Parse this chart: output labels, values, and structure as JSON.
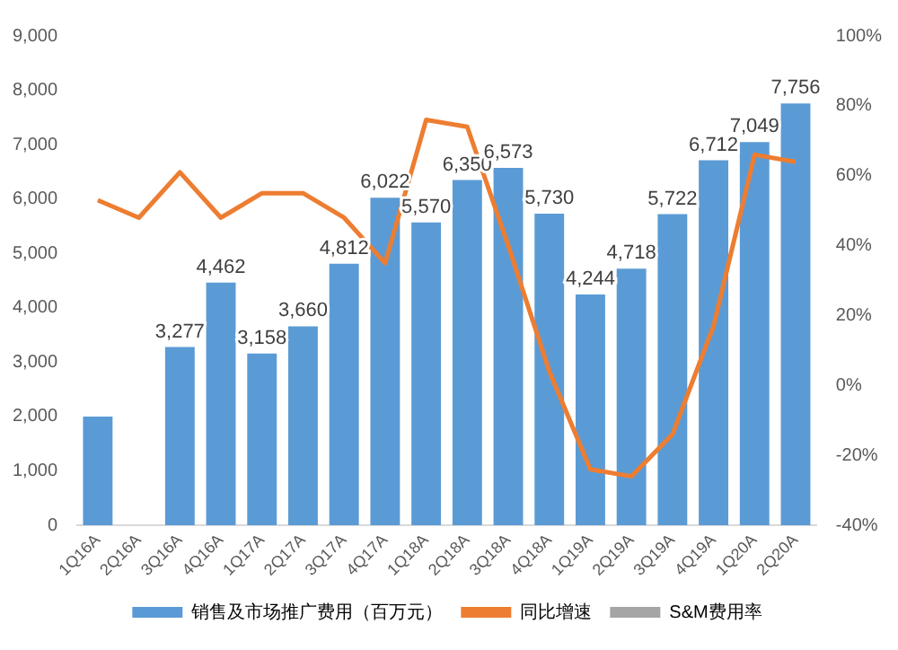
{
  "chart_data": {
    "type": "bar",
    "categories": [
      "1Q16A",
      "2Q16A",
      "3Q16A",
      "4Q16A",
      "1Q17A",
      "2Q17A",
      "3Q17A",
      "4Q17A",
      "1Q18A",
      "2Q18A",
      "3Q18A",
      "4Q18A",
      "1Q19A",
      "2Q19A",
      "3Q19A",
      "4Q19A",
      "1Q20A",
      "2Q20A"
    ],
    "series": [
      {
        "name": "销售及市场推广费用（百万元）",
        "color": "#5b9bd5",
        "values": [
          2000,
          null,
          3277,
          4462,
          3158,
          3660,
          4812,
          6022,
          5570,
          6350,
          6573,
          5730,
          4244,
          4718,
          5722,
          6712,
          7049,
          7756
        ],
        "value_labels": [
          null,
          null,
          "3,277",
          "4,462",
          "3,158",
          "3,660",
          "4,812",
          "6,022",
          "5,570",
          "6,350",
          "6,573",
          "5,730",
          "4,244",
          "4,718",
          "5,722",
          "6,712",
          "7,049",
          "7,756"
        ]
      },
      {
        "name": "同比增速",
        "type": "line",
        "axis": "y2",
        "color": "#ed7d31",
        "values": [
          53,
          48,
          61,
          48,
          55,
          55,
          48,
          35,
          76,
          74,
          40,
          4,
          -24,
          -26,
          -14,
          17,
          66,
          64
        ]
      },
      {
        "name": "S&M费用率",
        "type": "line",
        "axis": "y2",
        "color": "#a5a5a5",
        "values": [
          null,
          null,
          null,
          null,
          null,
          null,
          null,
          null,
          null,
          null,
          null,
          null,
          null,
          null,
          null,
          null,
          null,
          null
        ]
      }
    ],
    "ylim": [
      0,
      9000
    ],
    "yticks": [
      {
        "value": 0,
        "label": "0"
      },
      {
        "value": 1000,
        "label": "1,000"
      },
      {
        "value": 2000,
        "label": "2,000"
      },
      {
        "value": 3000,
        "label": "3,000"
      },
      {
        "value": 4000,
        "label": "4,000"
      },
      {
        "value": 5000,
        "label": "5,000"
      },
      {
        "value": 6000,
        "label": "6,000"
      },
      {
        "value": 7000,
        "label": "7,000"
      },
      {
        "value": 8000,
        "label": "8,000"
      },
      {
        "value": 9000,
        "label": "9,000"
      }
    ],
    "y2lim": [
      -40,
      100
    ],
    "y2ticks": [
      {
        "value": -40,
        "label": "-40%"
      },
      {
        "value": -20,
        "label": "-20%"
      },
      {
        "value": 0,
        "label": "0%"
      },
      {
        "value": 20,
        "label": "20%"
      },
      {
        "value": 40,
        "label": "40%"
      },
      {
        "value": 60,
        "label": "60%"
      },
      {
        "value": 80,
        "label": "80%"
      },
      {
        "value": 100,
        "label": "100%"
      }
    ],
    "grid": false,
    "legend": "bottom",
    "marker": "none"
  }
}
